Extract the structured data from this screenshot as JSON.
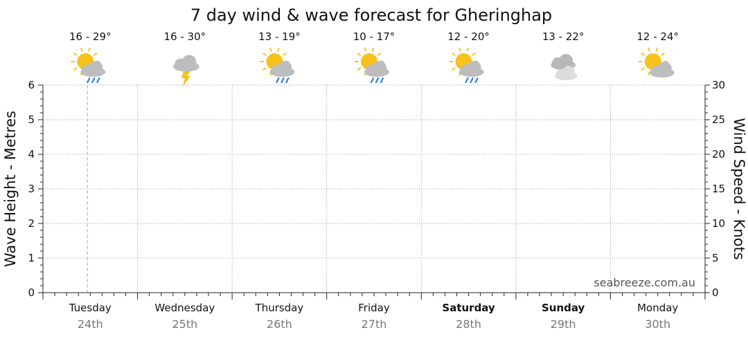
{
  "chart_data": {
    "type": "line",
    "title": "7 day wind & wave forecast for Gheringhap",
    "y_left": {
      "label": "Wave Height - Metres",
      "range": [
        0,
        6
      ],
      "ticks": [
        0,
        1,
        2,
        3,
        4,
        5,
        6
      ]
    },
    "y_right": {
      "label": "Wind Speed - Knots",
      "range": [
        0,
        30
      ],
      "ticks": [
        0,
        5,
        10,
        15,
        20,
        25,
        30
      ]
    },
    "grid": true,
    "days": [
      {
        "day": "Tuesday",
        "date": "24th",
        "temp": "16 - 29°",
        "icon": "sun-rain-icon",
        "bold": false
      },
      {
        "day": "Wednesday",
        "date": "25th",
        "temp": "16 - 30°",
        "icon": "storm-icon",
        "bold": false
      },
      {
        "day": "Thursday",
        "date": "26th",
        "temp": "13 - 19°",
        "icon": "sun-rain-icon",
        "bold": false
      },
      {
        "day": "Friday",
        "date": "27th",
        "temp": "10 - 17°",
        "icon": "sun-rain-icon",
        "bold": false
      },
      {
        "day": "Saturday",
        "date": "28th",
        "temp": "12 - 20°",
        "icon": "sun-rain-icon",
        "bold": true
      },
      {
        "day": "Sunday",
        "date": "29th",
        "temp": "13 - 22°",
        "icon": "cloudy-icon",
        "bold": true
      },
      {
        "day": "Monday",
        "date": "30th",
        "temp": "12 - 24°",
        "icon": "partly-cloudy-icon",
        "bold": false
      }
    ],
    "current_time_marker": {
      "day_index": 0,
      "fraction_of_day": 0.47
    },
    "series": []
  },
  "watermark": "seabreeze.com.au",
  "colors": {
    "grid": "#999999",
    "now_line": "#f0a0a0",
    "sun": "#f7c21a",
    "cloud": "#bdbdbd",
    "rain": "#2f7fe0",
    "bolt": "#f7c21a"
  }
}
